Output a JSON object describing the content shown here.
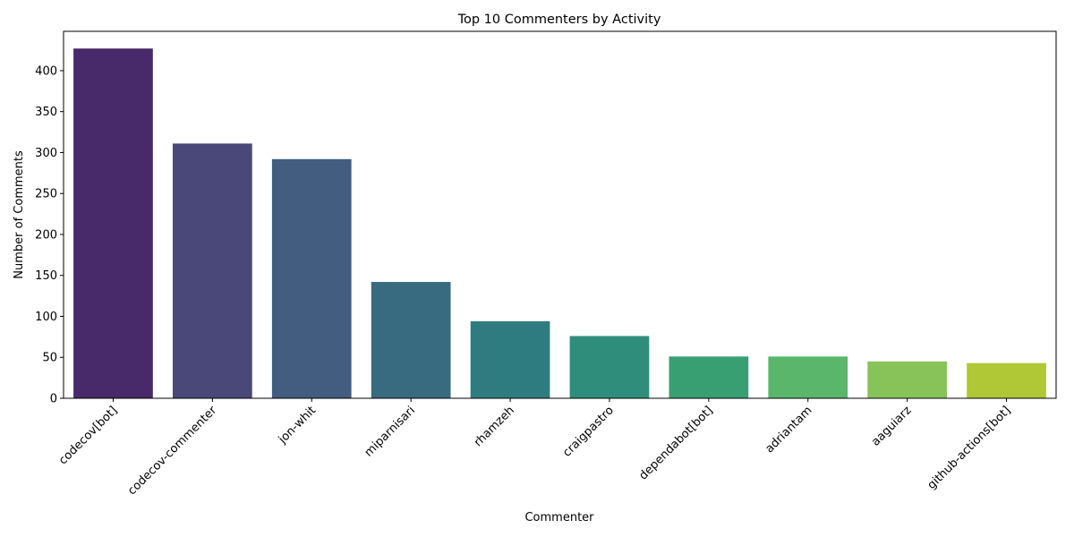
{
  "chart_data": {
    "type": "bar",
    "title": "Top 10 Commenters by Activity",
    "xlabel": "Commenter",
    "ylabel": "Number of Comments",
    "categories": [
      "codecov[bot]",
      "codecov-commenter",
      "jon-whit",
      "miparnisari",
      "rhamzeh",
      "craigpastro",
      "dependabot[bot]",
      "adriantam",
      "aaguiarz",
      "github-actions[bot]"
    ],
    "values": [
      427,
      311,
      292,
      142,
      94,
      76,
      51,
      51,
      45,
      43
    ],
    "colors": [
      "#482a6a",
      "#4a4779",
      "#435d80",
      "#386a80",
      "#2f7c80",
      "#2e8e7b",
      "#389f72",
      "#5ab66b",
      "#87c359",
      "#b0c736"
    ],
    "yticks": [
      0,
      50,
      100,
      150,
      200,
      250,
      300,
      350,
      400
    ],
    "ylim": [
      0,
      448
    ],
    "grid": false,
    "legend": "none"
  }
}
